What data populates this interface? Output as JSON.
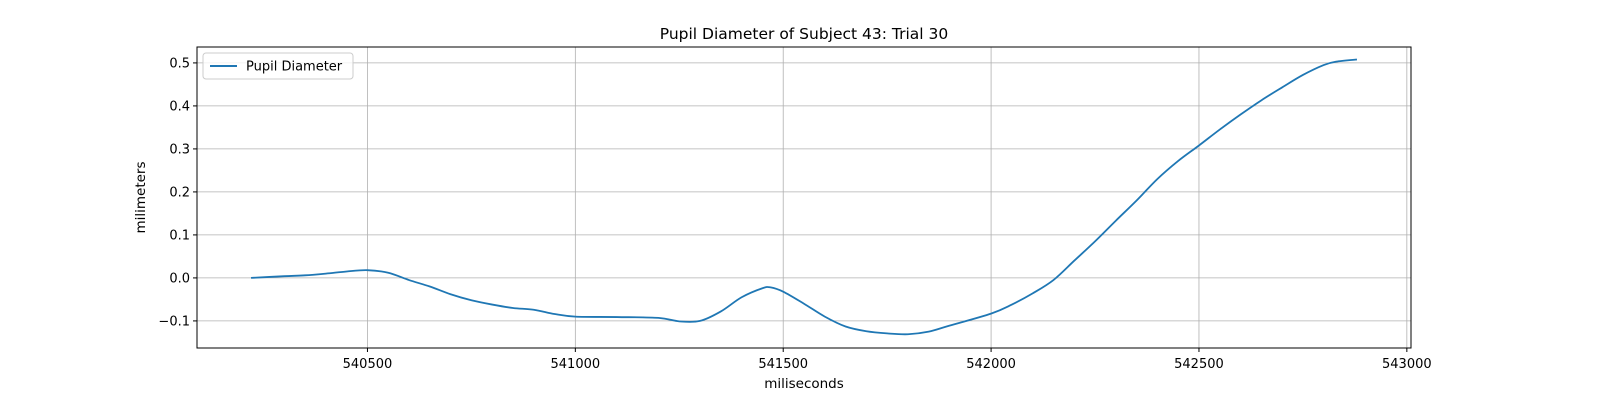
{
  "chart_data": {
    "type": "line",
    "title": "Pupil Diameter of Subject 43: Trial 30",
    "xlabel": "miliseconds",
    "ylabel": "milimeters",
    "xlim": [
      540090,
      543010
    ],
    "ylim": [
      -0.163,
      0.537
    ],
    "xticks": [
      540500,
      541000,
      541500,
      542000,
      542500,
      543000
    ],
    "yticks": [
      -0.1,
      0.0,
      0.1,
      0.2,
      0.3,
      0.4,
      0.5
    ],
    "xtick_labels": [
      "540500",
      "541000",
      "541500",
      "542000",
      "542500",
      "543000"
    ],
    "ytick_labels": [
      "−0.1",
      "0.0",
      "0.1",
      "0.2",
      "0.3",
      "0.4",
      "0.5"
    ],
    "grid": true,
    "legend": {
      "position": "top-left"
    },
    "series": [
      {
        "name": "Pupil Diameter",
        "color": "#1f77b4",
        "x": [
          540220,
          540300,
          540350,
          540400,
          540450,
          540500,
          540550,
          540600,
          540650,
          540700,
          540750,
          540800,
          540850,
          540900,
          540950,
          541000,
          541100,
          541200,
          541250,
          541300,
          541350,
          541400,
          541450,
          541470,
          541500,
          541550,
          541600,
          541650,
          541700,
          541750,
          541800,
          541850,
          541900,
          542000,
          542050,
          542100,
          542150,
          542200,
          542250,
          542300,
          542350,
          542400,
          542450,
          542500,
          542550,
          542600,
          542650,
          542700,
          542750,
          542800,
          542830,
          542880
        ],
        "y": [
          0.0,
          0.004,
          0.006,
          0.01,
          0.015,
          0.018,
          0.012,
          -0.005,
          -0.02,
          -0.038,
          -0.052,
          -0.062,
          -0.07,
          -0.074,
          -0.084,
          -0.09,
          -0.091,
          -0.093,
          -0.101,
          -0.1,
          -0.078,
          -0.045,
          -0.024,
          -0.022,
          -0.032,
          -0.06,
          -0.09,
          -0.113,
          -0.124,
          -0.129,
          -0.131,
          -0.125,
          -0.111,
          -0.083,
          -0.062,
          -0.036,
          -0.005,
          0.04,
          0.085,
          0.133,
          0.18,
          0.23,
          0.272,
          0.308,
          0.345,
          0.38,
          0.413,
          0.443,
          0.472,
          0.495,
          0.503,
          0.508
        ]
      }
    ]
  }
}
